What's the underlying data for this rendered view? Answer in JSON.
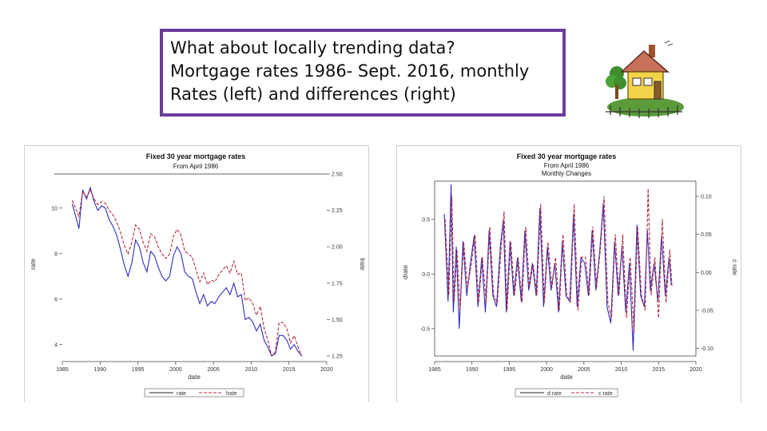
{
  "slide": {
    "title_lines": [
      "What about locally trending data?",
      "Mortgage rates 1986- Sept. 2016, monthly",
      "Rates (left) and differences (right)"
    ]
  },
  "icons": {
    "decor": "house-clipart-icon"
  },
  "colors": {
    "title_border": "#6a3d9a",
    "series_a": "#2d2dbf",
    "series_b": "#b52a3a"
  },
  "chart_data": [
    {
      "type": "line",
      "title": "Fixed 30 year mortgage rates",
      "subtitle": "From April 1986",
      "xlabel": "date",
      "ylabel": "rate",
      "ylabel_right": "lrate",
      "xlim": [
        1985,
        2020
      ],
      "ylim": [
        3.5,
        11.5
      ],
      "ylim_right": [
        1.25,
        2.5
      ],
      "x_ticks": [
        1985,
        1990,
        1995,
        2000,
        2005,
        2010,
        2015,
        2020
      ],
      "y_ticks": [
        4,
        6,
        8,
        10
      ],
      "y_tick_labels": [
        "4",
        "6",
        "8",
        "10"
      ],
      "y_ticks_right": [
        1.25,
        1.5,
        1.75,
        2.0,
        2.25,
        2.5
      ],
      "y_tick_labels_right": [
        "1.25",
        "1.50",
        "1.75",
        "2.00",
        "2.25",
        "2.50"
      ],
      "legend": [
        "rate",
        "lrate"
      ],
      "legend_position": "bottom",
      "grid": false,
      "series": [
        {
          "name": "rate",
          "axis": "left",
          "style": "solid",
          "color": "#2d2dbf",
          "x": [
            1986.3,
            1986.8,
            1987.2,
            1987.7,
            1988.2,
            1988.7,
            1989.2,
            1989.7,
            1990.2,
            1990.7,
            1991.2,
            1991.7,
            1992.2,
            1992.7,
            1993.2,
            1993.7,
            1994.2,
            1994.7,
            1995.2,
            1995.7,
            1996.2,
            1996.7,
            1997.2,
            1997.7,
            1998.2,
            1998.7,
            1999.2,
            1999.7,
            2000.2,
            2000.7,
            2001.2,
            2001.7,
            2002.2,
            2002.7,
            2003.2,
            2003.7,
            2004.2,
            2004.7,
            2005.2,
            2005.7,
            2006.2,
            2006.7,
            2007.2,
            2007.7,
            2008.2,
            2008.7,
            2009.2,
            2009.7,
            2010.2,
            2010.7,
            2011.2,
            2011.7,
            2012.2,
            2012.7,
            2013.2,
            2013.7,
            2014.2,
            2014.7,
            2015.2,
            2015.7,
            2016.2,
            2016.7
          ],
          "y": [
            10.2,
            9.6,
            9.1,
            10.8,
            10.4,
            10.9,
            10.3,
            9.9,
            10.1,
            10.0,
            9.5,
            9.2,
            8.8,
            8.2,
            7.5,
            7.0,
            7.6,
            8.6,
            8.3,
            7.6,
            7.2,
            8.1,
            7.9,
            7.4,
            7.0,
            6.8,
            7.0,
            7.9,
            8.3,
            8.0,
            7.2,
            7.0,
            6.9,
            6.3,
            5.8,
            6.2,
            5.7,
            5.9,
            5.8,
            6.1,
            6.3,
            6.5,
            6.2,
            6.7,
            6.1,
            6.2,
            5.1,
            5.2,
            5.0,
            4.6,
            4.9,
            4.2,
            3.9,
            3.5,
            3.6,
            4.4,
            4.4,
            4.2,
            3.8,
            4.0,
            3.7,
            3.5
          ]
        },
        {
          "name": "lrate",
          "axis": "right",
          "style": "dashed",
          "color": "#b52a3a",
          "x": [
            1986.3,
            1986.8,
            1987.2,
            1987.7,
            1988.2,
            1988.7,
            1989.2,
            1989.7,
            1990.2,
            1990.7,
            1991.2,
            1991.7,
            1992.2,
            1992.7,
            1993.2,
            1993.7,
            1994.2,
            1994.7,
            1995.2,
            1995.7,
            1996.2,
            1996.7,
            1997.2,
            1997.7,
            1998.2,
            1998.7,
            1999.2,
            1999.7,
            2000.2,
            2000.7,
            2001.2,
            2001.7,
            2002.2,
            2002.7,
            2003.2,
            2003.7,
            2004.2,
            2004.7,
            2005.2,
            2005.7,
            2006.2,
            2006.7,
            2007.2,
            2007.7,
            2008.2,
            2008.7,
            2009.2,
            2009.7,
            2010.2,
            2010.7,
            2011.2,
            2011.7,
            2012.2,
            2012.7,
            2013.2,
            2013.7,
            2014.2,
            2014.7,
            2015.2,
            2015.7,
            2016.2,
            2016.7
          ],
          "y": [
            2.32,
            2.26,
            2.21,
            2.38,
            2.34,
            2.39,
            2.33,
            2.29,
            2.31,
            2.3,
            2.25,
            2.22,
            2.17,
            2.1,
            2.01,
            1.95,
            2.03,
            2.15,
            2.12,
            2.03,
            1.97,
            2.09,
            2.07,
            2.0,
            1.95,
            1.92,
            1.95,
            2.07,
            2.12,
            2.08,
            1.97,
            1.95,
            1.93,
            1.84,
            1.76,
            1.82,
            1.74,
            1.77,
            1.76,
            1.81,
            1.84,
            1.87,
            1.82,
            1.9,
            1.81,
            1.82,
            1.63,
            1.65,
            1.61,
            1.53,
            1.59,
            1.44,
            1.36,
            1.25,
            1.28,
            1.48,
            1.48,
            1.44,
            1.34,
            1.39,
            1.31,
            1.25
          ]
        }
      ]
    },
    {
      "type": "line",
      "title": "Fixed 30 year mortgage rates",
      "subtitle": "From April 1986",
      "subtitle2": "Monthly Changes",
      "xlabel": "date",
      "ylabel": "drate",
      "ylabel_right": "c rate",
      "xlim": [
        1985,
        2020
      ],
      "ylim": [
        -0.75,
        0.85
      ],
      "ylim_right": [
        -0.11,
        0.12
      ],
      "x_ticks": [
        1985,
        1990,
        1995,
        2000,
        2005,
        2010,
        2015,
        2020
      ],
      "y_ticks": [
        -0.5,
        0.0,
        0.5
      ],
      "y_tick_labels": [
        "-0.5",
        "0.0",
        "0.5"
      ],
      "y_ticks_right": [
        -0.1,
        -0.05,
        0.0,
        0.05,
        0.1
      ],
      "y_tick_labels_right": [
        "-0.10",
        "-0.05",
        "0.00",
        "0.05",
        "0.10"
      ],
      "legend": [
        "d rate",
        "c rate"
      ],
      "legend_position": "bottom",
      "grid": false,
      "series": [
        {
          "name": "d rate",
          "axis": "left",
          "style": "solid",
          "color": "#2d2dbf",
          "x": [
            1986.3,
            1986.8,
            1987.2,
            1987.5,
            1987.9,
            1988.3,
            1988.8,
            1989.3,
            1989.8,
            1990.3,
            1990.8,
            1991.3,
            1991.8,
            1992.3,
            1992.8,
            1993.3,
            1993.8,
            1994.2,
            1994.6,
            1995.1,
            1995.6,
            1996.1,
            1996.6,
            1997.1,
            1997.6,
            1998.1,
            1998.6,
            1999.1,
            1999.6,
            2000.1,
            2000.6,
            2001.1,
            2001.6,
            2002.1,
            2002.6,
            2003.1,
            2003.6,
            2004.1,
            2004.6,
            2005.1,
            2005.6,
            2006.1,
            2006.6,
            2007.1,
            2007.6,
            2008.1,
            2008.6,
            2009.1,
            2009.6,
            2010.1,
            2010.6,
            2011.1,
            2011.6,
            2012.1,
            2012.6,
            2013.1,
            2013.5,
            2013.9,
            2014.4,
            2014.9,
            2015.4,
            2015.9,
            2016.4,
            2016.7
          ],
          "y": [
            0.55,
            -0.25,
            0.82,
            -0.35,
            0.25,
            -0.5,
            0.3,
            -0.2,
            0.1,
            0.35,
            -0.3,
            0.15,
            -0.35,
            0.4,
            -0.2,
            -0.3,
            0.25,
            0.5,
            -0.35,
            0.3,
            -0.2,
            0.15,
            -0.25,
            0.4,
            -0.15,
            0.1,
            -0.2,
            0.6,
            -0.3,
            0.25,
            -0.15,
            0.1,
            -0.35,
            0.3,
            -0.2,
            -0.25,
            0.55,
            -0.3,
            0.15,
            0.1,
            -0.2,
            0.4,
            -0.15,
            0.2,
            0.65,
            -0.3,
            -0.45,
            0.3,
            -0.2,
            0.25,
            -0.35,
            0.1,
            -0.7,
            0.45,
            -0.2,
            -0.3,
            0.4,
            -0.15,
            0.1,
            -0.25,
            0.35,
            -0.2,
            0.15,
            -0.1
          ]
        },
        {
          "name": "c rate",
          "axis": "right",
          "style": "dashed",
          "color": "#b52a3a",
          "x": [
            1986.4,
            1986.9,
            1987.3,
            1987.6,
            1988.0,
            1988.4,
            1988.9,
            1989.4,
            1989.9,
            1990.4,
            1990.9,
            1991.4,
            1991.9,
            1992.4,
            1992.9,
            1993.4,
            1993.9,
            1994.3,
            1994.7,
            1995.2,
            1995.7,
            1996.2,
            1996.7,
            1997.2,
            1997.7,
            1998.2,
            1998.7,
            1999.2,
            1999.7,
            2000.2,
            2000.7,
            2001.2,
            2001.7,
            2002.2,
            2002.7,
            2003.2,
            2003.7,
            2004.2,
            2004.7,
            2005.2,
            2005.7,
            2006.2,
            2006.7,
            2007.2,
            2007.7,
            2008.2,
            2008.7,
            2009.2,
            2009.7,
            2010.2,
            2010.7,
            2011.2,
            2011.7,
            2012.2,
            2012.7,
            2013.2,
            2013.6,
            2014.0,
            2014.5,
            2015.0,
            2015.5,
            2016.0,
            2016.5,
            2016.8
          ],
          "y": [
            0.07,
            -0.03,
            0.1,
            -0.04,
            0.03,
            -0.05,
            0.04,
            -0.02,
            0.01,
            0.05,
            -0.04,
            0.02,
            -0.04,
            0.06,
            -0.03,
            -0.04,
            0.03,
            0.08,
            -0.05,
            0.04,
            -0.03,
            0.02,
            -0.04,
            0.06,
            -0.02,
            0.01,
            -0.03,
            0.09,
            -0.04,
            0.04,
            -0.02,
            0.02,
            -0.05,
            0.05,
            -0.03,
            -0.04,
            0.09,
            -0.05,
            0.02,
            0.02,
            -0.03,
            0.06,
            -0.02,
            0.03,
            0.1,
            -0.04,
            -0.06,
            0.05,
            -0.03,
            0.05,
            -0.06,
            0.02,
            -0.08,
            0.06,
            -0.03,
            -0.05,
            0.11,
            -0.03,
            0.02,
            -0.06,
            0.07,
            -0.04,
            0.03,
            -0.02
          ]
        }
      ]
    }
  ]
}
